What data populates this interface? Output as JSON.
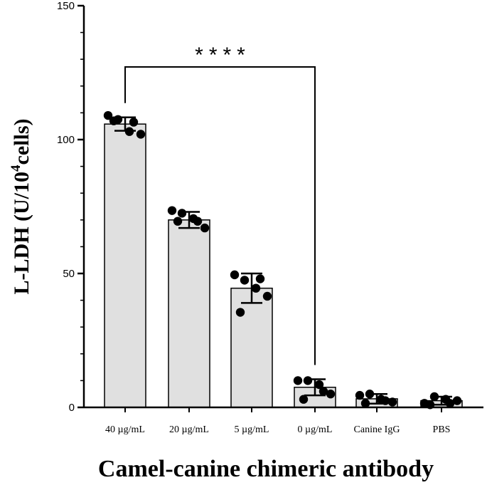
{
  "chart_data": {
    "type": "bar",
    "title": "",
    "xlabel": "Camel-canine chimeric antibody",
    "ylabel_main": "L-LDH (U/10",
    "ylabel_sup": "4",
    "ylabel_end": "cells)",
    "ylim": [
      0,
      150
    ],
    "yticks": [
      "0",
      "50",
      "100",
      "150"
    ],
    "ytick_values": [
      0,
      50,
      100,
      150
    ],
    "categories": [
      "40 µg/mL",
      "20 µg/mL",
      "5 µg/mL",
      "0 µg/mL",
      "Canine IgG",
      "PBS"
    ],
    "values": [
      105.8,
      70.0,
      44.5,
      7.5,
      3.2,
      2.5
    ],
    "errors": [
      2.5,
      3.0,
      5.5,
      3.0,
      1.8,
      1.5
    ],
    "points": [
      [
        109.0,
        107.5,
        103.0,
        102.0,
        107.0,
        106.5
      ],
      [
        73.5,
        72.5,
        70.5,
        67.0,
        69.5,
        69.5
      ],
      [
        49.5,
        47.5,
        44.5,
        41.5,
        35.5,
        48.0
      ],
      [
        10.0,
        10.0,
        8.5,
        5.0,
        3.0,
        6.0
      ],
      [
        4.5,
        5.0,
        3.0,
        2.0,
        1.5,
        2.5
      ],
      [
        1.5,
        4.0,
        3.0,
        2.5,
        1.0,
        1.5
      ]
    ],
    "significance": {
      "from": 0,
      "to": 3,
      "label": "****"
    },
    "bar_color": "#e0e0e0",
    "grid": false
  }
}
